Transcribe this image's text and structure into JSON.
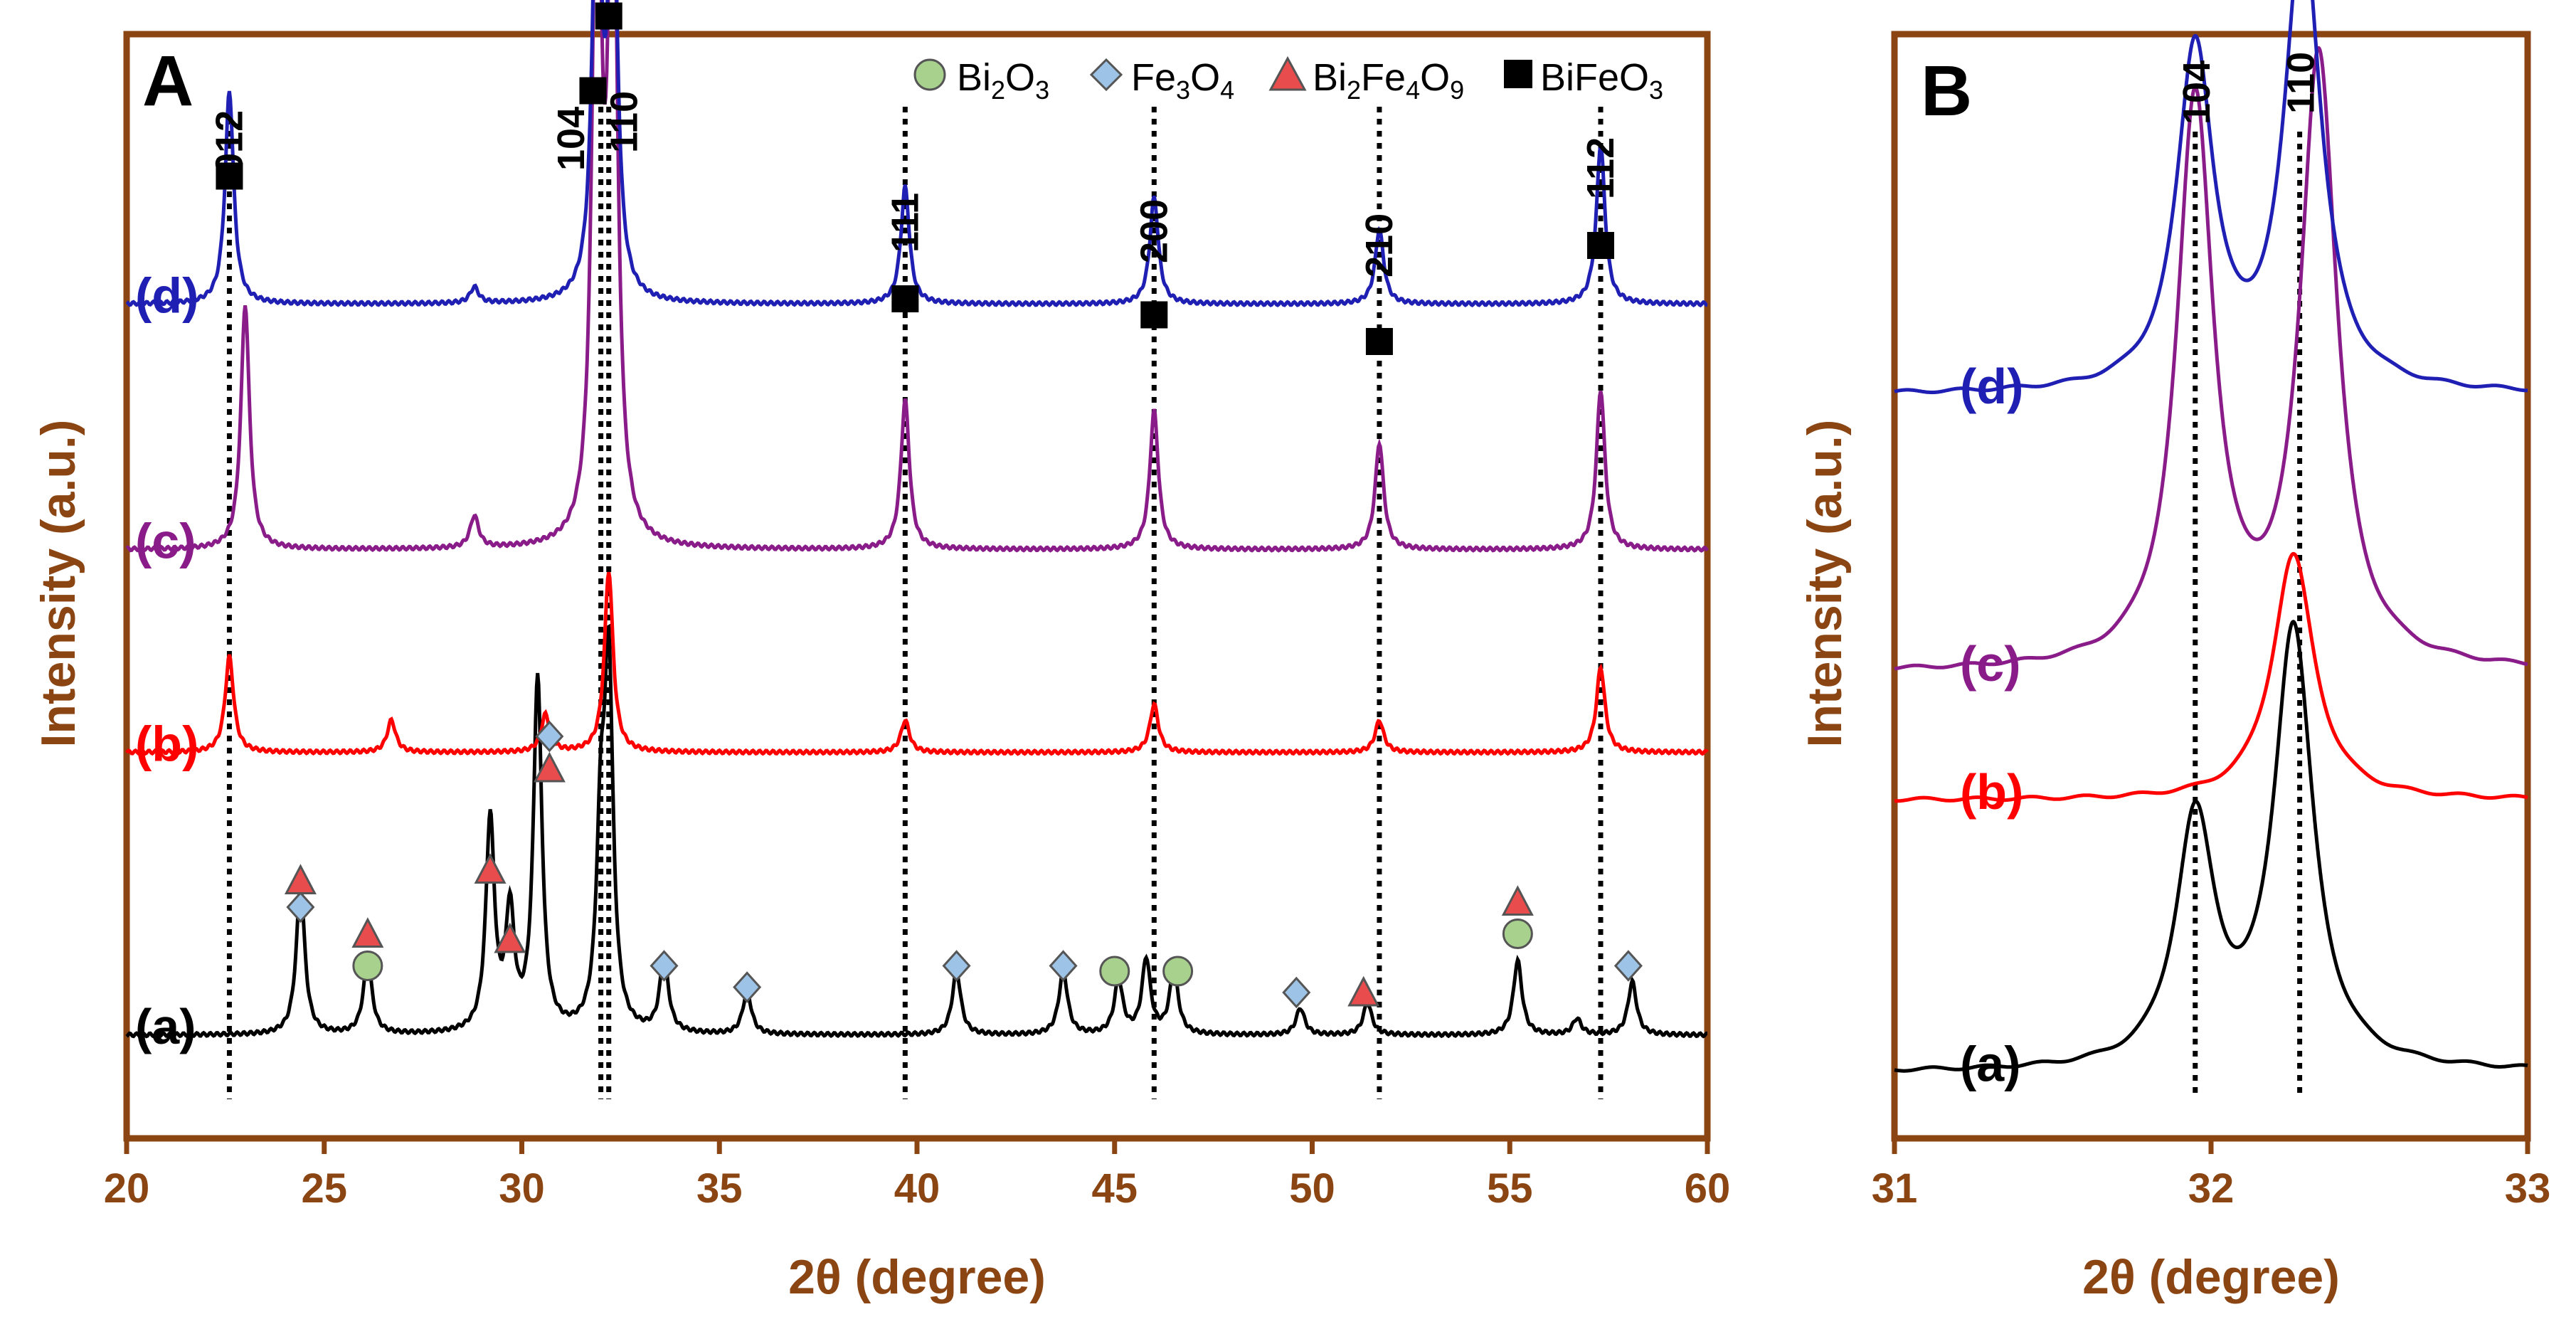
{
  "chart_data": [
    {
      "panel": "A",
      "type": "line",
      "xlabel": "2θ (degree)",
      "ylabel": "Intensity (a.u.)",
      "xlim": [
        20,
        60
      ],
      "xticks": [
        20,
        25,
        30,
        35,
        40,
        45,
        50,
        55,
        60
      ],
      "legend": {
        "placement": "top-right",
        "items": [
          {
            "base": "Bi",
            "sub1": "2",
            "mid": "O",
            "sub2": "3",
            "tail": "",
            "sub3": "",
            "marker": "circle",
            "color": "#a9d18e"
          },
          {
            "base": "Fe",
            "sub1": "3",
            "mid": "O",
            "sub2": "4",
            "tail": "",
            "sub3": "",
            "marker": "diamond",
            "color": "#9dc3e6"
          },
          {
            "base": "Bi",
            "sub1": "2",
            "mid": "Fe",
            "sub2": "4",
            "tail": "O",
            "sub3": "9",
            "marker": "triangle",
            "color": "#e84c4c"
          },
          {
            "base": "BiFeO",
            "sub1": "3",
            "mid": "",
            "sub2": "",
            "tail": "",
            "sub3": "",
            "marker": "square",
            "color": "#000000"
          }
        ]
      },
      "hkl_labels": [
        {
          "text": "012",
          "x": 22.6
        },
        {
          "text": "104",
          "x": 31.9
        },
        {
          "text": "110",
          "x": 32.2
        },
        {
          "text": "111",
          "x": 39.7
        },
        {
          "text": "200",
          "x": 46.0
        },
        {
          "text": "210",
          "x": 51.7
        },
        {
          "text": "112",
          "x": 57.3
        }
      ],
      "reference_lines": [
        22.6,
        32.0,
        32.2,
        39.7,
        46.0,
        51.7,
        57.3
      ],
      "series": [
        {
          "name": "(a)",
          "color": "#000000",
          "baseline": 0.07,
          "peaks": [
            [
              24.4,
              0.14
            ],
            [
              26.1,
              0.07
            ],
            [
              29.2,
              0.2
            ],
            [
              29.7,
              0.11
            ],
            [
              30.4,
              0.33
            ],
            [
              32.0,
              0.17
            ],
            [
              32.2,
              0.33
            ],
            [
              33.6,
              0.07
            ],
            [
              35.7,
              0.04
            ],
            [
              41.0,
              0.06
            ],
            [
              43.7,
              0.06
            ],
            [
              45.1,
              0.05
            ],
            [
              45.8,
              0.07
            ],
            [
              46.5,
              0.06
            ],
            [
              49.7,
              0.025
            ],
            [
              51.4,
              0.03
            ],
            [
              55.2,
              0.07
            ],
            [
              56.7,
              0.015
            ],
            [
              58.1,
              0.05
            ]
          ]
        },
        {
          "name": "(b)",
          "color": "#ff0000",
          "baseline": 0.335,
          "peaks": [
            [
              22.6,
              0.09
            ],
            [
              26.7,
              0.03
            ],
            [
              30.6,
              0.035
            ],
            [
              32.2,
              0.17
            ],
            [
              39.7,
              0.03
            ],
            [
              46.0,
              0.045
            ],
            [
              51.7,
              0.03
            ],
            [
              57.3,
              0.08
            ]
          ]
        },
        {
          "name": "(c)",
          "color": "#8a1c8a",
          "baseline": 0.525,
          "peaks": [
            [
              23.0,
              0.23
            ],
            [
              28.8,
              0.03
            ],
            [
              31.9,
              0.7
            ],
            [
              32.3,
              0.7
            ],
            [
              39.7,
              0.14
            ],
            [
              46.0,
              0.13
            ],
            [
              51.7,
              0.1
            ],
            [
              57.3,
              0.15
            ]
          ]
        },
        {
          "name": "(d)",
          "color": "#1f1fb4",
          "baseline": 0.755,
          "peaks": [
            [
              22.6,
              0.2
            ],
            [
              28.8,
              0.015
            ],
            [
              31.9,
              0.42
            ],
            [
              32.3,
              0.42
            ],
            [
              39.7,
              0.11
            ],
            [
              46.0,
              0.1
            ],
            [
              51.7,
              0.07
            ],
            [
              57.3,
              0.15
            ]
          ]
        }
      ],
      "phase_markers": [
        {
          "x": 24.4,
          "level": 0.19,
          "marker": "diamond"
        },
        {
          "x": 24.4,
          "level": 0.215,
          "marker": "triangle"
        },
        {
          "x": 26.1,
          "level": 0.135,
          "marker": "circle"
        },
        {
          "x": 26.1,
          "level": 0.165,
          "marker": "triangle"
        },
        {
          "x": 29.2,
          "level": 0.225,
          "marker": "triangle"
        },
        {
          "x": 29.7,
          "level": 0.16,
          "marker": "triangle"
        },
        {
          "x": 30.7,
          "level": 0.35,
          "marker": "diamond"
        },
        {
          "x": 30.7,
          "level": 0.32,
          "marker": "triangle"
        },
        {
          "x": 33.6,
          "level": 0.135,
          "marker": "diamond"
        },
        {
          "x": 35.7,
          "level": 0.115,
          "marker": "diamond"
        },
        {
          "x": 41.0,
          "level": 0.135,
          "marker": "diamond"
        },
        {
          "x": 43.7,
          "level": 0.135,
          "marker": "diamond"
        },
        {
          "x": 45.0,
          "level": 0.13,
          "marker": "circle"
        },
        {
          "x": 46.6,
          "level": 0.13,
          "marker": "circle"
        },
        {
          "x": 49.6,
          "level": 0.11,
          "marker": "diamond"
        },
        {
          "x": 51.3,
          "level": 0.11,
          "marker": "triangle"
        },
        {
          "x": 55.2,
          "level": 0.165,
          "marker": "circle"
        },
        {
          "x": 55.2,
          "level": 0.195,
          "marker": "triangle"
        },
        {
          "x": 58.0,
          "level": 0.135,
          "marker": "diamond"
        },
        {
          "x": 22.6,
          "level": 0.875,
          "marker": "square"
        },
        {
          "x": 31.8,
          "level": 0.955,
          "marker": "square"
        },
        {
          "x": 32.2,
          "level": 1.025,
          "marker": "square"
        },
        {
          "x": 39.7,
          "level": 0.76,
          "marker": "square"
        },
        {
          "x": 46.0,
          "level": 0.745,
          "marker": "square"
        },
        {
          "x": 51.7,
          "level": 0.72,
          "marker": "square"
        },
        {
          "x": 57.3,
          "level": 0.81,
          "marker": "square"
        }
      ]
    },
    {
      "panel": "B",
      "type": "line",
      "xlabel": "2θ (degree)",
      "ylabel": "Intensity (a.u.)",
      "xlim": [
        31,
        33
      ],
      "xticks": [
        31,
        32,
        33
      ],
      "hkl_labels": [
        {
          "text": "104",
          "x": 31.95
        },
        {
          "text": "110",
          "x": 32.28
        }
      ],
      "reference_lines": [
        31.95,
        32.28
      ],
      "series": [
        {
          "name": "(a)",
          "color": "#000000",
          "baseline": 0.035,
          "peaks": [
            [
              31.95,
              0.23,
              0.075
            ],
            [
              32.26,
              0.41,
              0.075
            ]
          ]
        },
        {
          "name": "(b)",
          "color": "#ff0000",
          "baseline": 0.29,
          "peaks": [
            [
              32.26,
              0.23,
              0.08
            ]
          ]
        },
        {
          "name": "(c)",
          "color": "#8a1c8a",
          "baseline": 0.41,
          "peaks": [
            [
              31.95,
              0.53,
              0.07
            ],
            [
              32.34,
              0.57,
              0.07
            ]
          ]
        },
        {
          "name": "(d)",
          "color": "#1f1fb4",
          "baseline": 0.67,
          "peaks": [
            [
              31.95,
              0.32,
              0.07
            ],
            [
              32.29,
              0.43,
              0.07
            ]
          ]
        }
      ]
    }
  ],
  "panels": {
    "a": {
      "label": "A"
    },
    "b": {
      "label": "B"
    }
  },
  "colors": {
    "axis": "#8B4513"
  }
}
